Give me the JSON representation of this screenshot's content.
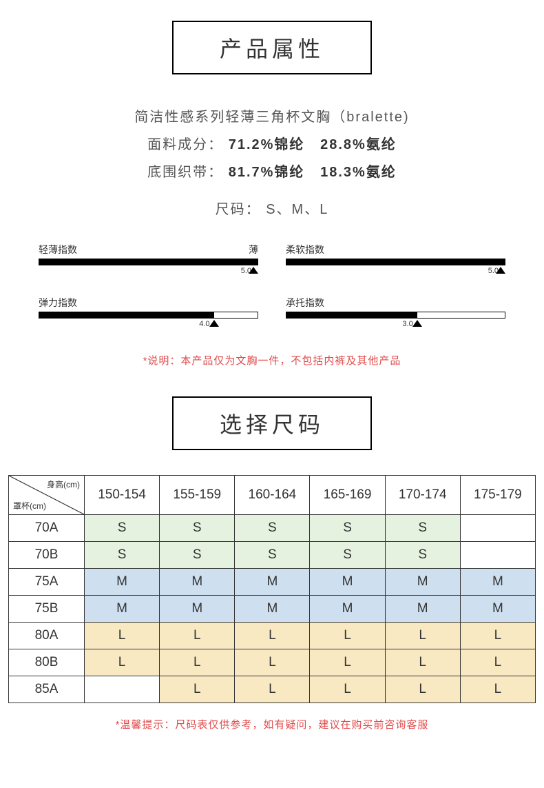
{
  "titles": {
    "attributes": "产品属性",
    "size_select": "选择尺码"
  },
  "desc": {
    "line1": "简洁性感系列轻薄三角杯文胸（bralette)",
    "fabric_label": "面料成分：",
    "fabric_v1": "71.2%锦纶",
    "fabric_v2": "28.8%氨纶",
    "band_label": "底围织带：",
    "band_v1": "81.7%锦纶",
    "band_v2": "18.3%氨纶",
    "sizes_label": "尺码：",
    "sizes_value": "S、M、L"
  },
  "metrics": [
    {
      "label": "轻薄指数",
      "end_label": "薄",
      "value": 5.0,
      "max": 5.0,
      "value_text": "5.0"
    },
    {
      "label": "柔软指数",
      "end_label": "",
      "value": 5.0,
      "max": 5.0,
      "value_text": "5.0"
    },
    {
      "label": "弹力指数",
      "end_label": "",
      "value": 4.0,
      "max": 5.0,
      "value_text": "4.0"
    },
    {
      "label": "承托指数",
      "end_label": "",
      "value": 3.0,
      "max": 5.0,
      "value_text": "3.0"
    }
  ],
  "note": "*说明：本产品仅为文胸一件，不包括内裤及其他产品",
  "size_table": {
    "diag_top": "身高(cm)",
    "diag_bottom": "罩杯(cm)",
    "columns": [
      "150-154",
      "155-159",
      "160-164",
      "165-169",
      "170-174",
      "175-179"
    ],
    "rows": [
      {
        "label": "70A",
        "cells": [
          "S",
          "S",
          "S",
          "S",
          "S",
          ""
        ]
      },
      {
        "label": "70B",
        "cells": [
          "S",
          "S",
          "S",
          "S",
          "S",
          ""
        ]
      },
      {
        "label": "75A",
        "cells": [
          "M",
          "M",
          "M",
          "M",
          "M",
          "M"
        ]
      },
      {
        "label": "75B",
        "cells": [
          "M",
          "M",
          "M",
          "M",
          "M",
          "M"
        ]
      },
      {
        "label": "80A",
        "cells": [
          "L",
          "L",
          "L",
          "L",
          "L",
          "L"
        ]
      },
      {
        "label": "80B",
        "cells": [
          "L",
          "L",
          "L",
          "L",
          "L",
          "L"
        ]
      },
      {
        "label": "85A",
        "cells": [
          "",
          "L",
          "L",
          "L",
          "L",
          "L"
        ]
      }
    ],
    "colors": {
      "S": "#e6f2e0",
      "M": "#cedff0",
      "L": "#f9e9c3",
      "": "#ffffff"
    }
  },
  "footnote": "*温馨提示：尺码表仅供参考，如有疑问，建议在购买前咨询客服"
}
